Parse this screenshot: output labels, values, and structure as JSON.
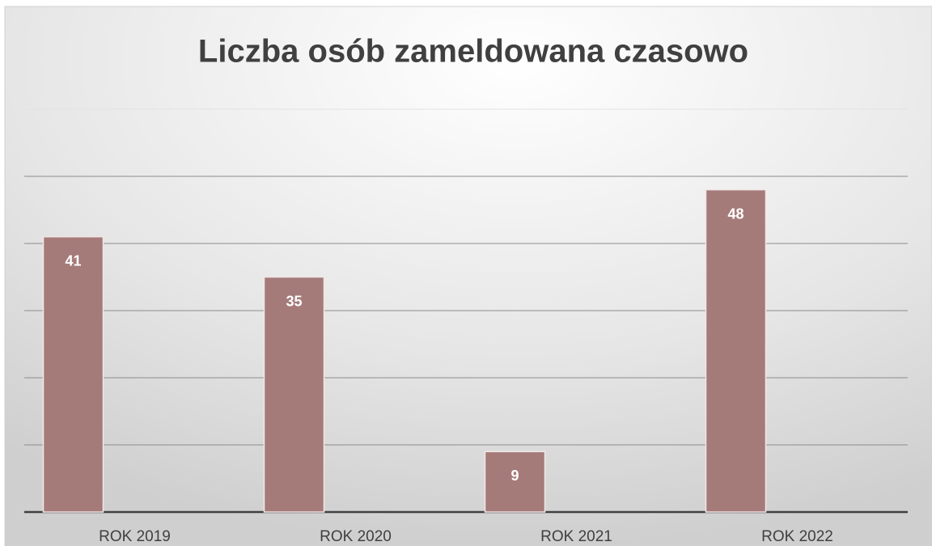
{
  "chart_data": {
    "type": "bar",
    "title": "Liczba osób zameldowana czasowo",
    "categories": [
      "ROK 2019",
      "ROK 2020",
      "ROK 2021",
      "ROK 2022"
    ],
    "values": [
      41,
      35,
      9,
      48
    ],
    "color": "#a57b7a",
    "ylim": [
      0,
      60
    ],
    "yticks": [
      0,
      10,
      20,
      30,
      40,
      50,
      60
    ],
    "grid": true
  }
}
